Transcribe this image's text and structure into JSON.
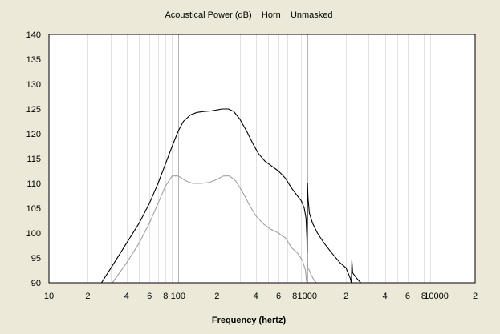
{
  "chart_data": {
    "type": "line",
    "title": "Acoustical Power (dB)    Horn    Unmasked",
    "xlabel": "Frequency (hertz)",
    "ylabel": "",
    "x_scale": "log",
    "xlim": [
      10,
      20000
    ],
    "ylim": [
      90,
      140
    ],
    "grid": true,
    "y_ticks": [
      "140",
      "135",
      "130",
      "125",
      "120",
      "115",
      "110",
      "105",
      "100",
      "95",
      "90"
    ],
    "x_ticks": [
      {
        "x": 10,
        "label": "10"
      },
      {
        "x": 20,
        "label": "2"
      },
      {
        "x": 40,
        "label": "4"
      },
      {
        "x": 60,
        "label": "6"
      },
      {
        "x": 80,
        "label": "8"
      },
      {
        "x": 100,
        "label": "100"
      },
      {
        "x": 200,
        "label": "2"
      },
      {
        "x": 400,
        "label": "4"
      },
      {
        "x": 600,
        "label": "6"
      },
      {
        "x": 800,
        "label": "8"
      },
      {
        "x": 1000,
        "label": "1000"
      },
      {
        "x": 2000,
        "label": "2"
      },
      {
        "x": 4000,
        "label": "4"
      },
      {
        "x": 6000,
        "label": "6"
      },
      {
        "x": 8000,
        "label": "8"
      },
      {
        "x": 10000,
        "label": "10000"
      },
      {
        "x": 20000,
        "label": "2"
      }
    ],
    "colors": {
      "background": "#ece9d8",
      "plot_background": "#ffffff",
      "major_grid": "#b4b4b4",
      "minor_grid": "#e2e2e2",
      "series_1": "#000000",
      "series_2": "#a0a0a0"
    },
    "series": [
      {
        "color": "#000000",
        "points": [
          [
            25.5,
            90
          ],
          [
            32,
            94
          ],
          [
            40,
            98
          ],
          [
            50,
            102
          ],
          [
            60,
            106
          ],
          [
            70,
            110
          ],
          [
            80,
            114
          ],
          [
            90,
            117.5
          ],
          [
            100,
            120.5
          ],
          [
            110,
            122.5
          ],
          [
            125,
            123.8
          ],
          [
            140,
            124.3
          ],
          [
            160,
            124.5
          ],
          [
            180,
            124.6
          ],
          [
            200,
            124.8
          ],
          [
            220,
            125
          ],
          [
            245,
            125
          ],
          [
            270,
            124.5
          ],
          [
            300,
            123
          ],
          [
            340,
            120.5
          ],
          [
            380,
            118
          ],
          [
            420,
            116
          ],
          [
            470,
            114.5
          ],
          [
            530,
            113.5
          ],
          [
            600,
            112.5
          ],
          [
            680,
            111
          ],
          [
            760,
            109
          ],
          [
            840,
            107.5
          ],
          [
            900,
            106.5
          ],
          [
            950,
            105
          ],
          [
            980,
            103
          ],
          [
            995,
            99
          ],
          [
            1000,
            96
          ],
          [
            1005,
            110
          ],
          [
            1015,
            107
          ],
          [
            1040,
            104
          ],
          [
            1100,
            102
          ],
          [
            1200,
            100
          ],
          [
            1350,
            98
          ],
          [
            1550,
            96
          ],
          [
            1800,
            94
          ],
          [
            2000,
            93
          ],
          [
            2150,
            91
          ],
          [
            2200,
            90
          ],
          [
            2220,
            94.5
          ],
          [
            2250,
            92
          ],
          [
            2400,
            91
          ],
          [
            2600,
            90
          ]
        ]
      },
      {
        "color": "#a0a0a0",
        "points": [
          [
            31,
            90
          ],
          [
            40,
            94
          ],
          [
            50,
            98
          ],
          [
            60,
            102
          ],
          [
            70,
            106
          ],
          [
            80,
            109.5
          ],
          [
            90,
            111.5
          ],
          [
            100,
            111.5
          ],
          [
            115,
            110.5
          ],
          [
            130,
            110
          ],
          [
            150,
            110
          ],
          [
            175,
            110.2
          ],
          [
            200,
            110.8
          ],
          [
            225,
            111.5
          ],
          [
            250,
            111.5
          ],
          [
            280,
            110.5
          ],
          [
            320,
            108
          ],
          [
            360,
            105.5
          ],
          [
            400,
            103.5
          ],
          [
            460,
            101.8
          ],
          [
            520,
            100.8
          ],
          [
            600,
            100
          ],
          [
            680,
            99
          ],
          [
            760,
            97
          ],
          [
            840,
            96
          ],
          [
            920,
            94.5
          ],
          [
            970,
            92.5
          ],
          [
            985,
            90.5
          ],
          [
            995,
            90
          ],
          [
            1000,
            96
          ],
          [
            1010,
            93
          ],
          [
            1040,
            92.5
          ],
          [
            1080,
            91.5
          ],
          [
            1130,
            90.5
          ],
          [
            1180,
            90
          ]
        ]
      }
    ]
  }
}
